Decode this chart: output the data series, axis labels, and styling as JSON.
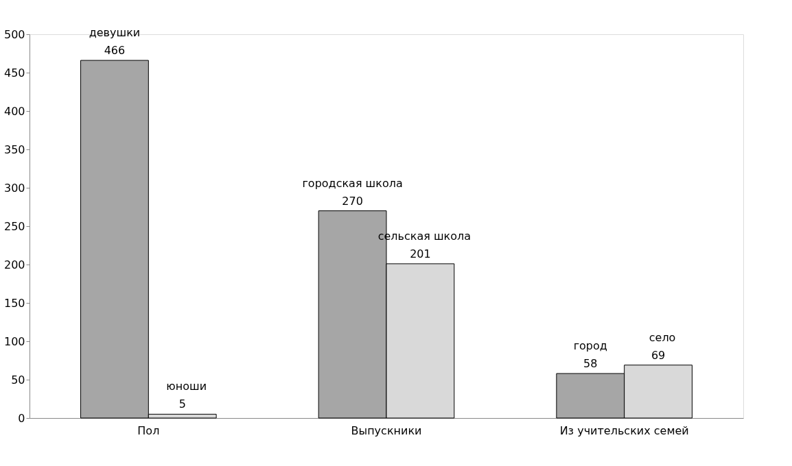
{
  "chart_data": {
    "type": "bar",
    "categories": [
      "Пол",
      "Выпускники",
      "Из учительских семей"
    ],
    "series": [
      {
        "color": "#a6a6a6",
        "values": [
          466,
          270,
          58
        ]
      },
      {
        "color": "#d9d9d9",
        "values": [
          5,
          201,
          69
        ]
      }
    ],
    "ylim": [
      0,
      500
    ],
    "yticks": [
      0,
      50,
      100,
      150,
      200,
      250,
      300,
      350,
      400,
      450,
      500
    ],
    "grid": false,
    "legend": false,
    "data_labels": true,
    "annotations": [
      {
        "text": "девушки",
        "x": "Пол",
        "y": 466
      },
      {
        "text": "юноши",
        "x": "Пол",
        "y": 5
      },
      {
        "text": "городская школа",
        "x": "Выпускники",
        "y": 270
      },
      {
        "text": "сельская школа",
        "x": "Выпускники",
        "y": 201
      },
      {
        "text": "город",
        "x": "Из учительских семей",
        "y": 58
      },
      {
        "text": "село",
        "x": "Из учительских семей",
        "y": 69
      }
    ]
  }
}
